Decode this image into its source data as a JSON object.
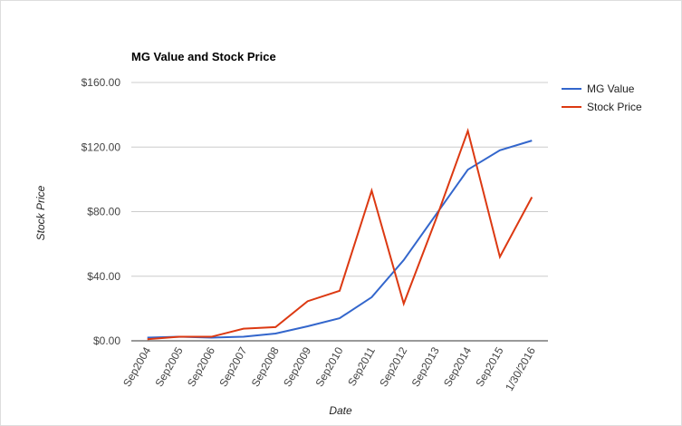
{
  "chart_data": {
    "type": "line",
    "title": "MG Value and Stock Price",
    "x_label": "Date",
    "y_label": "Stock Price",
    "categories": [
      "Sep2004",
      "Sep2005",
      "Sep2006",
      "Sep2007",
      "Sep2008",
      "Sep2009",
      "Sep2010",
      "Sep2011",
      "Sep2012",
      "Sep2013",
      "Sep2014",
      "Sep2015",
      "1/30/2016"
    ],
    "series": [
      {
        "name": "MG Value",
        "color": "#3366cc",
        "values": [
          2,
          2.5,
          2,
          2.5,
          4.5,
          9,
          14,
          27,
          50,
          78,
          106,
          118,
          124
        ]
      },
      {
        "name": "Stock Price",
        "color": "#dc3912",
        "values": [
          1,
          2.5,
          2.5,
          7.5,
          8.5,
          24.5,
          31,
          93,
          23,
          75,
          130,
          52,
          89
        ]
      }
    ],
    "ylim": [
      0,
      160
    ],
    "yticks": [
      {
        "value": 0,
        "label": "$0.00"
      },
      {
        "value": 40,
        "label": "$40.00"
      },
      {
        "value": 80,
        "label": "$80.00"
      },
      {
        "value": 120,
        "label": "$120.00"
      },
      {
        "value": 160,
        "label": "$160.00"
      }
    ],
    "grid": true,
    "legend": "right"
  }
}
